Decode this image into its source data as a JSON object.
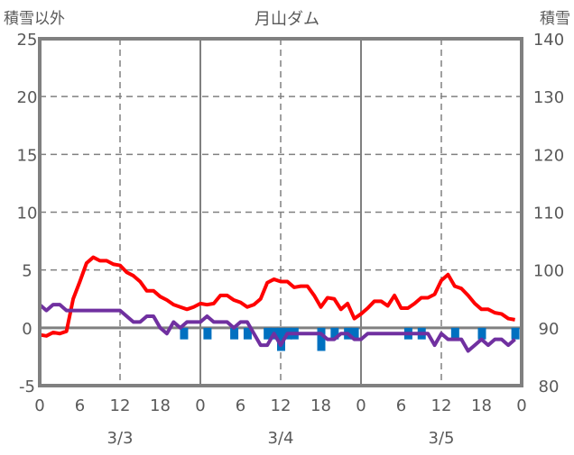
{
  "chart_data": {
    "type": "line",
    "title": "月山ダム",
    "ylabel_left": "積雪以外",
    "ylabel_right": "積雪",
    "ylim_left": [
      -5,
      25
    ],
    "ylim_right": [
      80,
      140
    ],
    "yticks_left": [
      "25",
      "20",
      "15",
      "10",
      "5",
      "0",
      "-5"
    ],
    "yticks_right": [
      "140",
      "130",
      "120",
      "110",
      "100",
      "90",
      "80"
    ],
    "xticks": [
      "0",
      "6",
      "12",
      "18",
      "0",
      "6",
      "12",
      "18",
      "0",
      "6",
      "12",
      "18",
      "0"
    ],
    "date_labels": [
      "3/3",
      "3/4",
      "3/5"
    ],
    "grid": true,
    "series": [
      {
        "name": "red",
        "color": "#ff0000",
        "axis": "left",
        "values": [
          -0.6,
          -0.7,
          -0.4,
          -0.5,
          -0.3,
          2.5,
          4.0,
          5.6,
          6.1,
          5.8,
          5.8,
          5.5,
          5.4,
          4.8,
          4.5,
          4.0,
          3.2,
          3.2,
          2.7,
          2.4,
          2.0,
          1.8,
          1.6,
          1.8,
          2.1,
          2.0,
          2.1,
          2.8,
          2.8,
          2.4,
          2.2,
          1.8,
          2.0,
          2.5,
          3.9,
          4.2,
          4.0,
          4.0,
          3.5,
          3.6,
          3.6,
          2.8,
          1.8,
          2.6,
          2.5,
          1.6,
          2.1,
          0.8,
          1.2,
          1.7,
          2.3,
          2.3,
          1.9,
          2.8,
          1.7,
          1.7,
          2.1,
          2.6,
          2.6,
          2.9,
          4.1,
          4.6,
          3.6,
          3.4,
          2.8,
          2.1,
          1.6,
          1.6,
          1.3,
          1.2,
          0.8,
          0.7
        ]
      },
      {
        "name": "purple",
        "color": "#7030a0",
        "axis": "left",
        "values": [
          2.0,
          1.5,
          2.0,
          2.0,
          1.5,
          1.5,
          1.5,
          1.5,
          1.5,
          1.5,
          1.5,
          1.5,
          1.5,
          1.0,
          0.5,
          0.5,
          1.0,
          1.0,
          0,
          -0.5,
          0.5,
          0,
          0.5,
          0.5,
          0.5,
          1.0,
          0.5,
          0.5,
          0.5,
          0,
          0.5,
          0.5,
          -0.5,
          -1.5,
          -1.5,
          -0.5,
          -1.5,
          -0.5,
          -0.5,
          -0.5,
          -0.5,
          -0.5,
          -0.5,
          -1.0,
          -1.0,
          -0.5,
          -0.5,
          -1.0,
          -1.0,
          -0.5,
          -0.5,
          -0.5,
          -0.5,
          -0.5,
          -0.5,
          -0.5,
          -0.5,
          -0.5,
          -0.5,
          -1.5,
          -0.5,
          -1.0,
          -1.0,
          -1.0,
          -2.0,
          -1.5,
          -1.0,
          -1.5,
          -1.0,
          -1.0,
          -1.5,
          -1.0
        ]
      }
    ],
    "bars": {
      "color": "#0070c0",
      "hours": [
        21.5,
        25,
        29,
        31,
        34,
        35,
        36,
        37,
        38,
        42,
        44,
        46,
        47,
        55,
        57,
        62,
        66,
        71
      ],
      "values": [
        -1,
        -1,
        -1,
        -1,
        -1,
        -1,
        -2,
        -1,
        -1,
        -2,
        -1,
        -1,
        -1,
        -1,
        -1,
        -1,
        -1,
        -1
      ]
    }
  }
}
